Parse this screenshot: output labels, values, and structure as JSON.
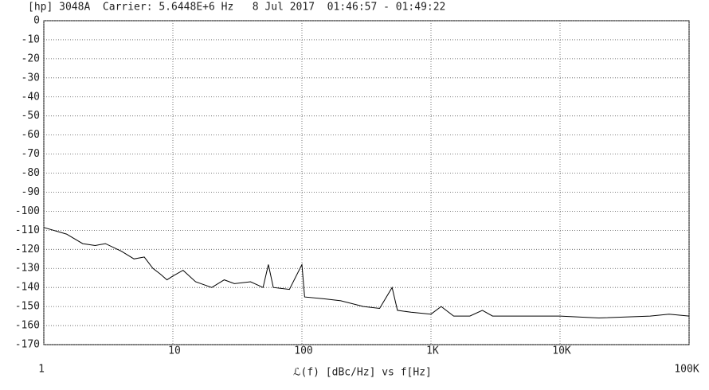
{
  "chart_data": {
    "type": "line",
    "title": "[hp] 3048A  Carrier: 5.6448E+6 Hz   8 Jul 2017  01:46:57 - 01:49:22",
    "x_label": "ℒ(f) [dBc/Hz] vs f[Hz]",
    "x": [
      1,
      1.5,
      2,
      2.5,
      3,
      4,
      5,
      6,
      7,
      8,
      9,
      10,
      12,
      15,
      20,
      25,
      30,
      40,
      50,
      55,
      60,
      80,
      100,
      105,
      150,
      200,
      300,
      400,
      500,
      550,
      700,
      1000,
      1200,
      1500,
      2000,
      2500,
      3000,
      5000,
      10000,
      20000,
      50000,
      70000,
      100000
    ],
    "series": [
      {
        "color": "#000000",
        "values": [
          -108.5,
          -112,
          -117,
          -118,
          -117,
          -121,
          -125,
          -124,
          -130,
          -133,
          -136,
          -134,
          -131,
          -137,
          -140,
          -136,
          -138,
          -137,
          -140,
          -128,
          -140,
          -141,
          -128,
          -145,
          -146,
          -147,
          -150,
          -151,
          -140,
          -152,
          -153,
          -154,
          -150,
          -155,
          -155,
          -152,
          -155,
          -155,
          -155,
          -156,
          -155,
          -154,
          -155
        ]
      }
    ],
    "xlim": [
      1,
      100000
    ],
    "log_x": true,
    "xticks": [
      1,
      10,
      100,
      {
        "value": 1000,
        "label": "1K"
      },
      {
        "value": 10000,
        "label": "10K"
      },
      {
        "value": 100000,
        "label": "100K"
      }
    ],
    "ylim": [
      -170,
      0
    ],
    "yticks": [
      0,
      -10,
      -20,
      -30,
      -40,
      -50,
      -60,
      -70,
      -80,
      -90,
      -100,
      -110,
      -120,
      -130,
      -140,
      -150,
      -160,
      -170
    ],
    "grid": true
  }
}
